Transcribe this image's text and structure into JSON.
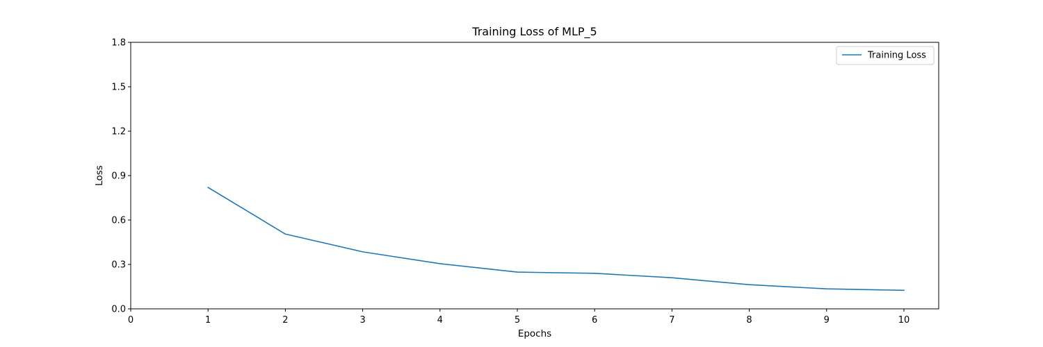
{
  "chart_data": {
    "type": "line",
    "title": "Training Loss of MLP_5",
    "xlabel": "Epochs",
    "ylabel": "Loss",
    "x": [
      1,
      2,
      3,
      4,
      5,
      6,
      7,
      8,
      9,
      10
    ],
    "series": [
      {
        "name": "Training Loss",
        "color": "#1f77b4",
        "values": [
          0.82,
          0.505,
          0.385,
          0.305,
          0.248,
          0.24,
          0.21,
          0.163,
          0.135,
          0.125
        ]
      }
    ],
    "xlim": [
      0,
      10.45
    ],
    "ylim": [
      0,
      1.8
    ],
    "xticks": [
      0,
      1,
      2,
      3,
      4,
      5,
      6,
      7,
      8,
      9,
      10
    ],
    "xtick_labels": [
      "0",
      "1",
      "2",
      "3",
      "4",
      "5",
      "6",
      "7",
      "8",
      "9",
      "10"
    ],
    "yticks": [
      0,
      0.3,
      0.6,
      0.9,
      1.2,
      1.5,
      1.8
    ],
    "ytick_labels": [
      "0.0",
      "0.3",
      "0.6",
      "0.9",
      "1.2",
      "1.5",
      "1.8"
    ],
    "grid": false,
    "legend_position": "top-right"
  }
}
